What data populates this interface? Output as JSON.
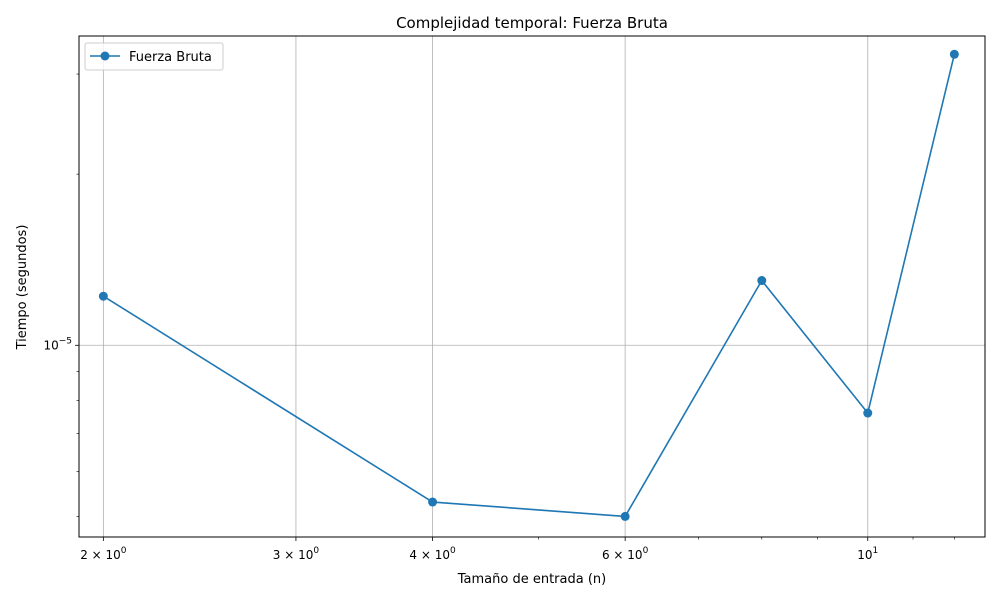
{
  "chart_data": {
    "type": "line",
    "title": "Complejidad temporal: Fuerza Bruta",
    "xlabel": "Tamaño de entrada (n)",
    "ylabel": "Tiempo (segundos)",
    "xscale": "log",
    "yscale": "log",
    "xlim": [
      1.9,
      12.8
    ],
    "ylim": [
      4.6e-06,
      3.5e-05
    ],
    "grid": true,
    "legend_position": "upper-left",
    "colors": {
      "series": "#1f77b4",
      "grid": "#b0b0b0",
      "axes": "#000000"
    },
    "x_major_ticks": [
      {
        "value": 2,
        "base": "2 × 10",
        "exp": "0"
      },
      {
        "value": 3,
        "base": "3 × 10",
        "exp": "0"
      },
      {
        "value": 4,
        "base": "4 × 10",
        "exp": "0"
      },
      {
        "value": 6,
        "base": "6 × 10",
        "exp": "0"
      },
      {
        "value": 10,
        "base": "10",
        "exp": "1"
      }
    ],
    "x_minor_ticks": [
      5,
      7,
      8,
      9,
      11,
      12
    ],
    "y_major_ticks": [
      {
        "value": 1e-05,
        "base": "10",
        "exp": "−5"
      }
    ],
    "y_minor_ticks": [
      5e-06,
      6e-06,
      7e-06,
      8e-06,
      9e-06,
      2e-05,
      3e-05
    ],
    "series": [
      {
        "name": "Fuerza Bruta",
        "x": [
          2,
          4,
          6,
          8,
          10,
          12
        ],
        "y": [
          1.22e-05,
          5.3e-06,
          5e-06,
          1.3e-05,
          7.6e-06,
          3.25e-05
        ]
      }
    ]
  }
}
